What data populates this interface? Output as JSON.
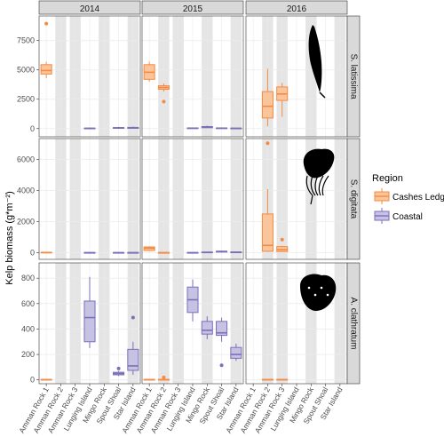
{
  "chart_data": {
    "type": "boxplot",
    "ylabel": "Kelp biomass (g*m⁻²)",
    "sites": [
      "Amman Rock 1",
      "Amman Rock 2",
      "Amman Rock 3",
      "Lunging Island",
      "Mingo Rock",
      "Spout Shoal",
      "Star Island"
    ],
    "shaded_sites": [
      "Amman Rock 2",
      "Amman Rock 3",
      "Mingo Rock",
      "Star Island"
    ],
    "years": [
      "2014",
      "2015",
      "2016"
    ],
    "legend": {
      "title": "Region",
      "entries": [
        {
          "label": "Cashes Ledge",
          "color": "#F58A42",
          "fill": "#FBC59B"
        },
        {
          "label": "Coastal",
          "color": "#7B6FB8",
          "fill": "#C6C2E3"
        }
      ]
    },
    "species": [
      {
        "name": "S. latissima",
        "ylim": [
          -700,
          9600
        ],
        "ticks": [
          0,
          2500,
          5000,
          7500
        ],
        "icon": "latissima-kelp-icon",
        "boxes": [
          {
            "year": "2014",
            "site": "Amman Rock 1",
            "region": "Cashes Ledge",
            "min": 4300,
            "q1": 4650,
            "median": 4950,
            "q3": 5450,
            "max": 5700,
            "outliers": [
              8950
            ]
          },
          {
            "year": "2014",
            "site": "Lunging Island",
            "region": "Coastal",
            "min": 0,
            "q1": 10,
            "median": 20,
            "q3": 40,
            "max": 60,
            "outliers": []
          },
          {
            "year": "2014",
            "site": "Spout Shoal",
            "region": "Coastal",
            "min": 0,
            "q1": 20,
            "median": 50,
            "q3": 90,
            "max": 150,
            "outliers": []
          },
          {
            "year": "2014",
            "site": "Star Island",
            "region": "Coastal",
            "min": 0,
            "q1": 20,
            "median": 50,
            "q3": 100,
            "max": 170,
            "outliers": []
          },
          {
            "year": "2015",
            "site": "Amman Rock 1",
            "region": "Cashes Ledge",
            "min": 4000,
            "q1": 4200,
            "median": 4800,
            "q3": 5450,
            "max": 5700,
            "outliers": []
          },
          {
            "year": "2015",
            "site": "Amman Rock 2",
            "region": "Cashes Ledge",
            "min": 3150,
            "q1": 3350,
            "median": 3500,
            "q3": 3650,
            "max": 3850,
            "outliers": [
              2300
            ]
          },
          {
            "year": "2015",
            "site": "Lunging Island",
            "region": "Coastal",
            "min": 0,
            "q1": 10,
            "median": 30,
            "q3": 60,
            "max": 90,
            "outliers": []
          },
          {
            "year": "2015",
            "site": "Mingo Rock",
            "region": "Coastal",
            "min": 30,
            "q1": 70,
            "median": 120,
            "q3": 170,
            "max": 250,
            "outliers": []
          },
          {
            "year": "2015",
            "site": "Spout Shoal",
            "region": "Coastal",
            "min": 0,
            "q1": 10,
            "median": 30,
            "q3": 60,
            "max": 90,
            "outliers": []
          },
          {
            "year": "2015",
            "site": "Star Island",
            "region": "Coastal",
            "min": 0,
            "q1": 10,
            "median": 20,
            "q3": 40,
            "max": 60,
            "outliers": []
          },
          {
            "year": "2016",
            "site": "Amman Rock 2",
            "region": "Cashes Ledge",
            "min": 200,
            "q1": 900,
            "median": 1900,
            "q3": 3150,
            "max": 5100,
            "outliers": []
          },
          {
            "year": "2016",
            "site": "Amman Rock 3",
            "region": "Cashes Ledge",
            "min": 1000,
            "q1": 2400,
            "median": 2950,
            "q3": 3550,
            "max": 3900,
            "outliers": []
          }
        ]
      },
      {
        "name": "S. digitata",
        "ylim": [
          -420,
          7350
        ],
        "ticks": [
          0,
          2000,
          4000,
          6000
        ],
        "icon": "digitata-kelp-icon",
        "boxes": [
          {
            "year": "2014",
            "site": "Amman Rock 1",
            "region": "Cashes Ledge",
            "min": 0,
            "q1": 10,
            "median": 20,
            "q3": 40,
            "max": 60,
            "outliers": []
          },
          {
            "year": "2014",
            "site": "Lunging Island",
            "region": "Coastal",
            "min": 0,
            "q1": 0,
            "median": 10,
            "q3": 20,
            "max": 30,
            "outliers": []
          },
          {
            "year": "2014",
            "site": "Spout Shoal",
            "region": "Coastal",
            "min": 0,
            "q1": 0,
            "median": 10,
            "q3": 20,
            "max": 30,
            "outliers": []
          },
          {
            "year": "2014",
            "site": "Star Island",
            "region": "Coastal",
            "min": 0,
            "q1": 0,
            "median": 10,
            "q3": 20,
            "max": 30,
            "outliers": []
          },
          {
            "year": "2015",
            "site": "Amman Rock 1",
            "region": "Cashes Ledge",
            "min": 100,
            "q1": 150,
            "median": 300,
            "q3": 380,
            "max": 420,
            "outliers": []
          },
          {
            "year": "2015",
            "site": "Amman Rock 2",
            "region": "Cashes Ledge",
            "min": 0,
            "q1": 0,
            "median": 10,
            "q3": 20,
            "max": 40,
            "outliers": []
          },
          {
            "year": "2015",
            "site": "Lunging Island",
            "region": "Coastal",
            "min": 0,
            "q1": 0,
            "median": 10,
            "q3": 20,
            "max": 30,
            "outliers": []
          },
          {
            "year": "2015",
            "site": "Mingo Rock",
            "region": "Coastal",
            "min": 0,
            "q1": 10,
            "median": 30,
            "q3": 50,
            "max": 70,
            "outliers": []
          },
          {
            "year": "2015",
            "site": "Spout Shoal",
            "region": "Coastal",
            "min": 20,
            "q1": 50,
            "median": 80,
            "q3": 110,
            "max": 150,
            "outliers": []
          },
          {
            "year": "2015",
            "site": "Star Island",
            "region": "Coastal",
            "min": 0,
            "q1": 10,
            "median": 30,
            "q3": 60,
            "max": 90,
            "outliers": []
          },
          {
            "year": "2016",
            "site": "Amman Rock 2",
            "region": "Cashes Ledge",
            "min": 50,
            "q1": 100,
            "median": 480,
            "q3": 2500,
            "max": 4100,
            "outliers": [
              7050
            ]
          },
          {
            "year": "2016",
            "site": "Amman Rock 3",
            "region": "Cashes Ledge",
            "min": 50,
            "q1": 80,
            "median": 200,
            "q3": 400,
            "max": 450,
            "outliers": [
              850
            ]
          }
        ]
      },
      {
        "name": "A. clathratum",
        "ylim": [
          -30,
          920
        ],
        "ticks": [
          0,
          200,
          400,
          600,
          800
        ],
        "icon": "clathratum-kelp-icon",
        "boxes": [
          {
            "year": "2014",
            "site": "Amman Rock 1",
            "region": "Cashes Ledge",
            "min": 0,
            "q1": 0,
            "median": 2,
            "q3": 4,
            "max": 6,
            "outliers": []
          },
          {
            "year": "2014",
            "site": "Lunging Island",
            "region": "Coastal",
            "min": 250,
            "q1": 300,
            "median": 490,
            "q3": 620,
            "max": 810,
            "outliers": []
          },
          {
            "year": "2014",
            "site": "Spout Shoal",
            "region": "Coastal",
            "min": 30,
            "q1": 40,
            "median": 50,
            "q3": 60,
            "max": 70,
            "outliers": [
              90
            ]
          },
          {
            "year": "2014",
            "site": "Star Island",
            "region": "Coastal",
            "min": 40,
            "q1": 75,
            "median": 110,
            "q3": 240,
            "max": 300,
            "outliers": [
              490
            ]
          },
          {
            "year": "2015",
            "site": "Amman Rock 1",
            "region": "Cashes Ledge",
            "min": 0,
            "q1": 0,
            "median": 2,
            "q3": 4,
            "max": 6,
            "outliers": []
          },
          {
            "year": "2015",
            "site": "Amman Rock 2",
            "region": "Cashes Ledge",
            "min": 0,
            "q1": 0,
            "median": 2,
            "q3": 4,
            "max": 6,
            "outliers": [
              20
            ]
          },
          {
            "year": "2015",
            "site": "Lunging Island",
            "region": "Coastal",
            "min": 460,
            "q1": 530,
            "median": 630,
            "q3": 730,
            "max": 790,
            "outliers": []
          },
          {
            "year": "2015",
            "site": "Mingo Rock",
            "region": "Coastal",
            "min": 320,
            "q1": 360,
            "median": 390,
            "q3": 460,
            "max": 500,
            "outliers": []
          },
          {
            "year": "2015",
            "site": "Spout Shoal",
            "region": "Coastal",
            "min": 300,
            "q1": 350,
            "median": 370,
            "q3": 460,
            "max": 490,
            "outliers": [
              115
            ]
          },
          {
            "year": "2015",
            "site": "Star Island",
            "region": "Coastal",
            "min": 150,
            "q1": 170,
            "median": 200,
            "q3": 255,
            "max": 285,
            "outliers": []
          },
          {
            "year": "2016",
            "site": "Amman Rock 2",
            "region": "Cashes Ledge",
            "min": 0,
            "q1": 0,
            "median": 2,
            "q3": 4,
            "max": 6,
            "outliers": []
          },
          {
            "year": "2016",
            "site": "Amman Rock 3",
            "region": "Cashes Ledge",
            "min": 0,
            "q1": 0,
            "median": 2,
            "q3": 4,
            "max": 6,
            "outliers": []
          }
        ]
      }
    ]
  }
}
